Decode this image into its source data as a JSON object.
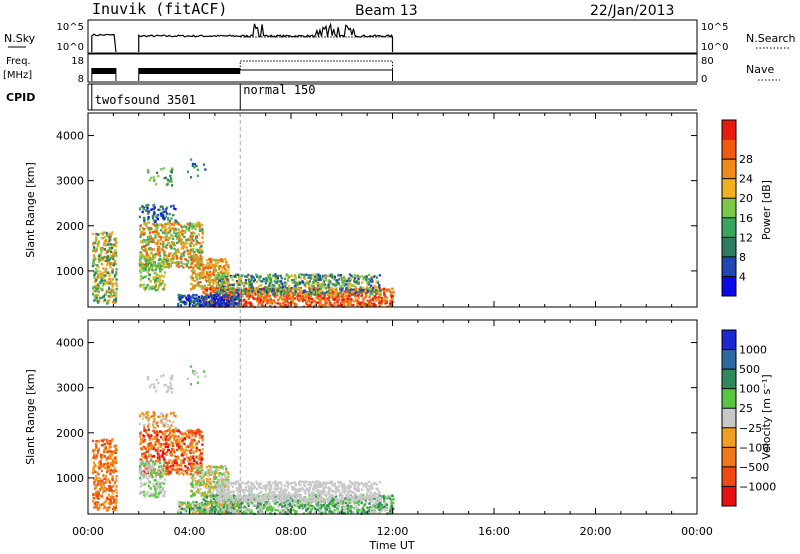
{
  "header": {
    "station": "Inuvik (fitACF)",
    "beam": "Beam 13",
    "date": "22/Jan/2013"
  },
  "top_panels": {
    "nsky": {
      "label": "N.Sky",
      "ticks": [
        "10^5",
        "10^0"
      ]
    },
    "nsearch": {
      "label": "N.Search",
      "ticks": [
        "10^5",
        "10^0"
      ]
    },
    "freq": {
      "label": "Freq.",
      "unit": "[MHz]",
      "ticks": [
        "18",
        "8"
      ]
    },
    "nave": {
      "label": "Nave",
      "ticks": [
        "80",
        "0"
      ]
    },
    "cpid": {
      "label": "CPID",
      "segments": [
        {
          "name": "twofsound 3501",
          "start_hour": 0.15
        },
        {
          "name": "normal 150",
          "start_hour": 6.0
        }
      ]
    }
  },
  "chart_data": [
    {
      "type": "heatmap",
      "title": "",
      "quantity": "Power",
      "xlabel": "",
      "ylabel": "Slant Range [km]",
      "xlim": [
        0,
        24
      ],
      "ylim": [
        200,
        4500
      ],
      "yticks": [
        "1000",
        "2000",
        "3000",
        "4000"
      ],
      "colorbar": {
        "label": "Power [dB]",
        "ticks": [
          "4",
          "8",
          "12",
          "16",
          "20",
          "24",
          "28"
        ],
        "colors": [
          "#0a0ae6",
          "#2046b4",
          "#2e7d62",
          "#3aa55e",
          "#7ac846",
          "#f0b020",
          "#f08a18",
          "#f05a10",
          "#e61c10"
        ]
      }
    },
    {
      "type": "heatmap",
      "title": "",
      "quantity": "Velocity",
      "xlabel": "Time UT",
      "ylabel": "Slant Range [km]",
      "xlim": [
        0,
        24
      ],
      "ylim": [
        200,
        4500
      ],
      "yticks": [
        "1000",
        "2000",
        "3000",
        "4000"
      ],
      "xticks": [
        "00:00",
        "04:00",
        "08:00",
        "12:00",
        "16:00",
        "20:00",
        "00:00"
      ],
      "colorbar": {
        "label": "Velocity [m s⁻¹]",
        "ticks": [
          "1000",
          "500",
          "100",
          "25",
          "−25",
          "−100",
          "−500",
          "−1000"
        ],
        "colors": [
          "#1a2ad0",
          "#2e6aa0",
          "#2e8a5a",
          "#58c640",
          "#c8c8c8",
          "#f0a020",
          "#f07818",
          "#f04a10",
          "#e61010"
        ]
      }
    }
  ]
}
